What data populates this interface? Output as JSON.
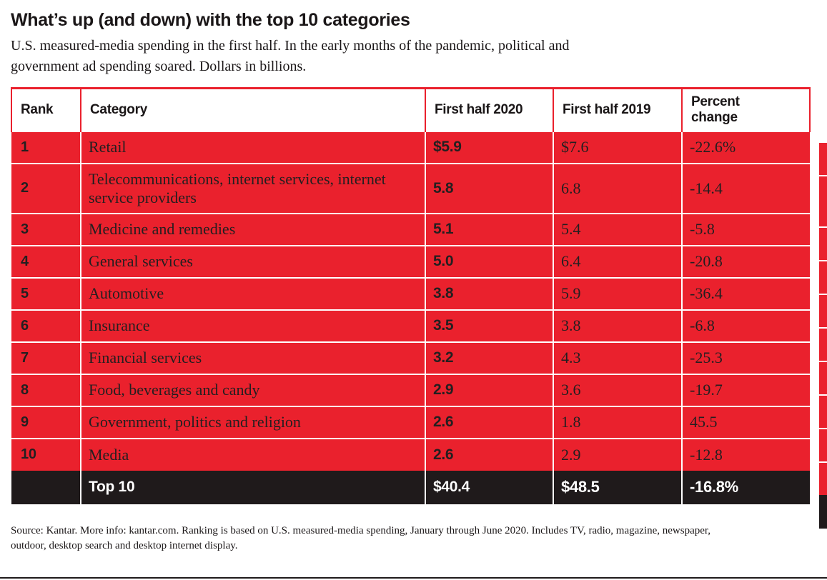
{
  "header": {
    "title": "What’s up (and down) with the top 10 categories",
    "subtitle_lines": [
      "U.S. measured-media spending in the first half. In the early months of the pandemic, political and",
      "government ad spending soared. Dollars in billions."
    ]
  },
  "chart_data": {
    "type": "table",
    "title": "What’s up (and down) with the top 10 categories",
    "unit": "Dollars in billions (USD), U.S. measured-media spending, first half",
    "columns": [
      "Rank",
      "Category",
      "First half 2020",
      "First half 2019",
      "Percent change"
    ],
    "rows": [
      [
        "1",
        "Retail",
        "$5.9",
        "$7.6",
        "-22.6%"
      ],
      [
        "2",
        "Telecommunications, internet services, internet service providers",
        "5.8",
        "6.8",
        "-14.4"
      ],
      [
        "3",
        "Medicine and remedies",
        "5.1",
        "5.4",
        "-5.8"
      ],
      [
        "4",
        "General services",
        "5.0",
        "6.4",
        "-20.8"
      ],
      [
        "5",
        "Automotive",
        "3.8",
        "5.9",
        "-36.4"
      ],
      [
        "6",
        "Insurance",
        "3.5",
        "3.8",
        "-6.8"
      ],
      [
        "7",
        "Financial services",
        "3.2",
        "4.3",
        "-25.3"
      ],
      [
        "8",
        "Food, beverages and candy",
        "2.9",
        "3.6",
        "-19.7"
      ],
      [
        "9",
        "Government, politics and religion",
        "2.6",
        "1.8",
        "45.5"
      ],
      [
        "10",
        "Media",
        "2.6",
        "2.9",
        "-12.8"
      ]
    ],
    "total_row": [
      "",
      "Top 10",
      "$40.4",
      "$48.5",
      "-16.8%"
    ]
  },
  "footer": {
    "source_lines": [
      "Source: Kantar. More info: kantar.com. Ranking is based on U.S. measured-media spending, January through June 2020. Includes TV, radio, magazine, newspaper,",
      "outdoor, desktop search and desktop internet display."
    ]
  },
  "colors": {
    "row_red": "#EA212D",
    "total_row_black": "#1F1A1B",
    "text_black": "#231F20",
    "total_text_white": "#FFFFFF"
  }
}
